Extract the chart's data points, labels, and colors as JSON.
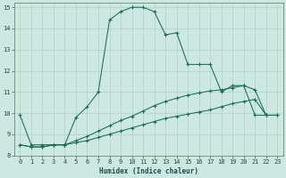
{
  "xlabel": "Humidex (Indice chaleur)",
  "bg_color": "#cce8e0",
  "grid_color": "#aad4c8",
  "line_color": "#1a6b5a",
  "xlim": [
    -0.5,
    23.5
  ],
  "ylim": [
    8,
    15.2
  ],
  "yticks": [
    8,
    9,
    10,
    11,
    12,
    13,
    14,
    15
  ],
  "xticks": [
    0,
    1,
    2,
    3,
    4,
    5,
    6,
    7,
    8,
    9,
    10,
    11,
    12,
    13,
    14,
    15,
    16,
    17,
    18,
    19,
    20,
    21,
    22,
    23
  ],
  "line1_x": [
    0,
    1,
    2,
    3,
    4,
    5,
    6,
    7,
    8,
    9,
    10,
    11,
    12,
    13,
    14,
    15,
    16,
    17,
    18,
    19,
    20,
    21,
    22
  ],
  "line1_y": [
    9.9,
    8.5,
    8.5,
    8.5,
    8.5,
    9.8,
    10.3,
    11.0,
    14.4,
    14.8,
    15.0,
    15.0,
    14.8,
    13.7,
    13.8,
    12.3,
    12.3,
    12.3,
    11.0,
    11.3,
    11.3,
    9.9,
    9.9
  ],
  "line2_x": [
    0,
    1,
    2,
    3,
    4,
    5,
    6,
    7,
    8,
    9,
    10,
    11,
    12,
    13,
    14,
    15,
    16,
    17,
    18,
    19,
    20,
    21,
    22,
    23
  ],
  "line2_y": [
    8.5,
    8.4,
    8.4,
    8.5,
    8.5,
    8.6,
    8.7,
    8.85,
    9.0,
    9.15,
    9.3,
    9.45,
    9.6,
    9.75,
    9.85,
    9.95,
    10.05,
    10.15,
    10.3,
    10.45,
    10.55,
    10.65,
    9.9,
    9.9
  ],
  "line3_x": [
    0,
    1,
    2,
    3,
    4,
    5,
    6,
    7,
    8,
    9,
    10,
    11,
    12,
    13,
    14,
    15,
    16,
    17,
    18,
    19,
    20,
    21,
    22,
    23
  ],
  "line3_y": [
    8.5,
    8.4,
    8.4,
    8.5,
    8.5,
    8.7,
    8.9,
    9.15,
    9.4,
    9.65,
    9.85,
    10.1,
    10.35,
    10.55,
    10.7,
    10.85,
    10.95,
    11.05,
    11.1,
    11.2,
    11.3,
    11.1,
    9.9,
    9.9
  ]
}
